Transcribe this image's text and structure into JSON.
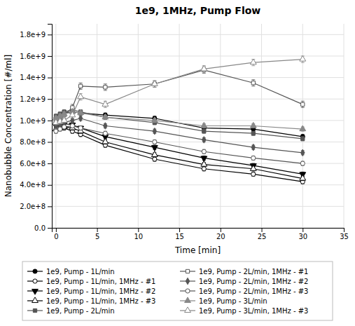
{
  "chart_data": {
    "type": "line",
    "title": "1e9, 1MHz, Pump Flow",
    "xlabel": "Time [min]",
    "ylabel": "Nanobubble Concentration [#/ml]",
    "xlim": [
      -0.5,
      35
    ],
    "ylim": [
      0.0,
      1900000000.0
    ],
    "xticks": [
      0,
      5,
      10,
      15,
      20,
      25,
      30,
      35
    ],
    "yticks": [
      {
        "value": 0.0,
        "label": "0.0"
      },
      {
        "value": 200000000.0,
        "label": "2.0e+8"
      },
      {
        "value": 400000000.0,
        "label": "4.0e+8"
      },
      {
        "value": 600000000.0,
        "label": "6.0e+8"
      },
      {
        "value": 800000000.0,
        "label": "8.0e+8"
      },
      {
        "value": 1000000000.0,
        "label": "1.0e+9"
      },
      {
        "value": 1200000000.0,
        "label": "1.2e+9"
      },
      {
        "value": 1400000000.0,
        "label": "1.4e+9"
      },
      {
        "value": 1600000000.0,
        "label": "1.6e+9"
      },
      {
        "value": 1800000000.0,
        "label": "1.8e+9"
      }
    ],
    "grid": true,
    "legend": "bottom",
    "x": [
      0,
      0.5,
      1,
      2,
      3,
      6,
      12,
      18,
      24,
      30
    ],
    "series": [
      {
        "name": "1e9, Pump - 1L/min",
        "color": "#000000",
        "marker": "circle",
        "values": [
          1020000000.0,
          1050000000.0,
          1070000000.0,
          1080000000.0,
          1070000000.0,
          1050000000.0,
          1020000000.0,
          930000000.0,
          920000000.0,
          850000000.0
        ],
        "errors": [
          20000000.0,
          20000000.0,
          20000000.0,
          20000000.0,
          20000000.0,
          20000000.0,
          20000000.0,
          20000000.0,
          20000000.0,
          20000000.0
        ]
      },
      {
        "name": "1e9, Pump - 1L/min, 1MHz - #1",
        "color": "#000000",
        "marker": "circle-open",
        "values": [
          980000000.0,
          950000000.0,
          930000000.0,
          900000000.0,
          870000000.0,
          770000000.0,
          640000000.0,
          550000000.0,
          500000000.0,
          430000000.0
        ],
        "errors": [
          20000000.0,
          20000000.0,
          20000000.0,
          20000000.0,
          20000000.0,
          20000000.0,
          20000000.0,
          20000000.0,
          20000000.0,
          20000000.0
        ]
      },
      {
        "name": "1e9, Pump - 1L/min, 1MHz - #2",
        "color": "#000000",
        "marker": "triangle-down",
        "values": [
          950000000.0,
          960000000.0,
          970000000.0,
          960000000.0,
          930000000.0,
          850000000.0,
          750000000.0,
          650000000.0,
          580000000.0,
          500000000.0
        ],
        "errors": [
          20000000.0,
          20000000.0,
          20000000.0,
          20000000.0,
          20000000.0,
          20000000.0,
          20000000.0,
          20000000.0,
          20000000.0,
          20000000.0
        ]
      },
      {
        "name": "1e9, Pump - 1L/min, 1MHz - #3",
        "color": "#000000",
        "marker": "triangle-up-open",
        "values": [
          920000000.0,
          930000000.0,
          940000000.0,
          930000000.0,
          900000000.0,
          800000000.0,
          680000000.0,
          590000000.0,
          550000000.0,
          460000000.0
        ],
        "errors": [
          20000000.0,
          20000000.0,
          20000000.0,
          20000000.0,
          20000000.0,
          20000000.0,
          20000000.0,
          20000000.0,
          20000000.0,
          20000000.0
        ]
      },
      {
        "name": "1e9, Pump - 2L/min",
        "color": "#555555",
        "marker": "square",
        "values": [
          1040000000.0,
          1060000000.0,
          1080000000.0,
          1100000000.0,
          1080000000.0,
          1030000000.0,
          980000000.0,
          900000000.0,
          880000000.0,
          830000000.0
        ],
        "errors": [
          20000000.0,
          20000000.0,
          20000000.0,
          20000000.0,
          20000000.0,
          20000000.0,
          20000000.0,
          20000000.0,
          20000000.0,
          20000000.0
        ]
      },
      {
        "name": "1e9, Pump - 2L/min, 1MHz - #1",
        "color": "#555555",
        "marker": "square-open",
        "values": [
          990000000.0,
          1000000000.0,
          1050000000.0,
          1120000000.0,
          1320000000.0,
          1310000000.0,
          1340000000.0,
          1470000000.0,
          1350000000.0,
          1150000000.0
        ],
        "errors": [
          20000000.0,
          20000000.0,
          30000000.0,
          30000000.0,
          30000000.0,
          30000000.0,
          30000000.0,
          30000000.0,
          30000000.0,
          30000000.0
        ]
      },
      {
        "name": "1e9, Pump - 2L/min, 1MHz - #2",
        "color": "#555555",
        "marker": "diamond",
        "values": [
          950000000.0,
          960000000.0,
          980000000.0,
          1000000000.0,
          1020000000.0,
          950000000.0,
          900000000.0,
          820000000.0,
          750000000.0,
          700000000.0
        ],
        "errors": [
          20000000.0,
          20000000.0,
          20000000.0,
          20000000.0,
          20000000.0,
          20000000.0,
          20000000.0,
          20000000.0,
          20000000.0,
          20000000.0
        ]
      },
      {
        "name": "1e9, Pump - 2L/min, 1MHz - #3",
        "color": "#555555",
        "marker": "circle-open",
        "values": [
          900000000.0,
          920000000.0,
          940000000.0,
          950000000.0,
          930000000.0,
          880000000.0,
          800000000.0,
          710000000.0,
          650000000.0,
          600000000.0
        ],
        "errors": [
          20000000.0,
          20000000.0,
          20000000.0,
          20000000.0,
          20000000.0,
          20000000.0,
          20000000.0,
          20000000.0,
          20000000.0,
          20000000.0
        ]
      },
      {
        "name": "1e9, Pump - 3L/min",
        "color": "#888888",
        "marker": "triangle-up",
        "values": [
          1020000000.0,
          1040000000.0,
          1060000000.0,
          1080000000.0,
          1070000000.0,
          1030000000.0,
          1000000000.0,
          950000000.0,
          950000000.0,
          920000000.0
        ],
        "errors": [
          20000000.0,
          20000000.0,
          20000000.0,
          20000000.0,
          20000000.0,
          20000000.0,
          20000000.0,
          20000000.0,
          20000000.0,
          20000000.0
        ]
      },
      {
        "name": "1e9, Pump - 3L/min, 1MHz - #3",
        "color": "#888888",
        "marker": "triangle-up-open",
        "values": [
          980000000.0,
          990000000.0,
          1000000000.0,
          1050000000.0,
          1220000000.0,
          1150000000.0,
          1340000000.0,
          1480000000.0,
          1540000000.0,
          1570000000.0
        ],
        "errors": [
          20000000.0,
          20000000.0,
          20000000.0,
          30000000.0,
          30000000.0,
          30000000.0,
          30000000.0,
          30000000.0,
          30000000.0,
          30000000.0
        ]
      }
    ]
  }
}
